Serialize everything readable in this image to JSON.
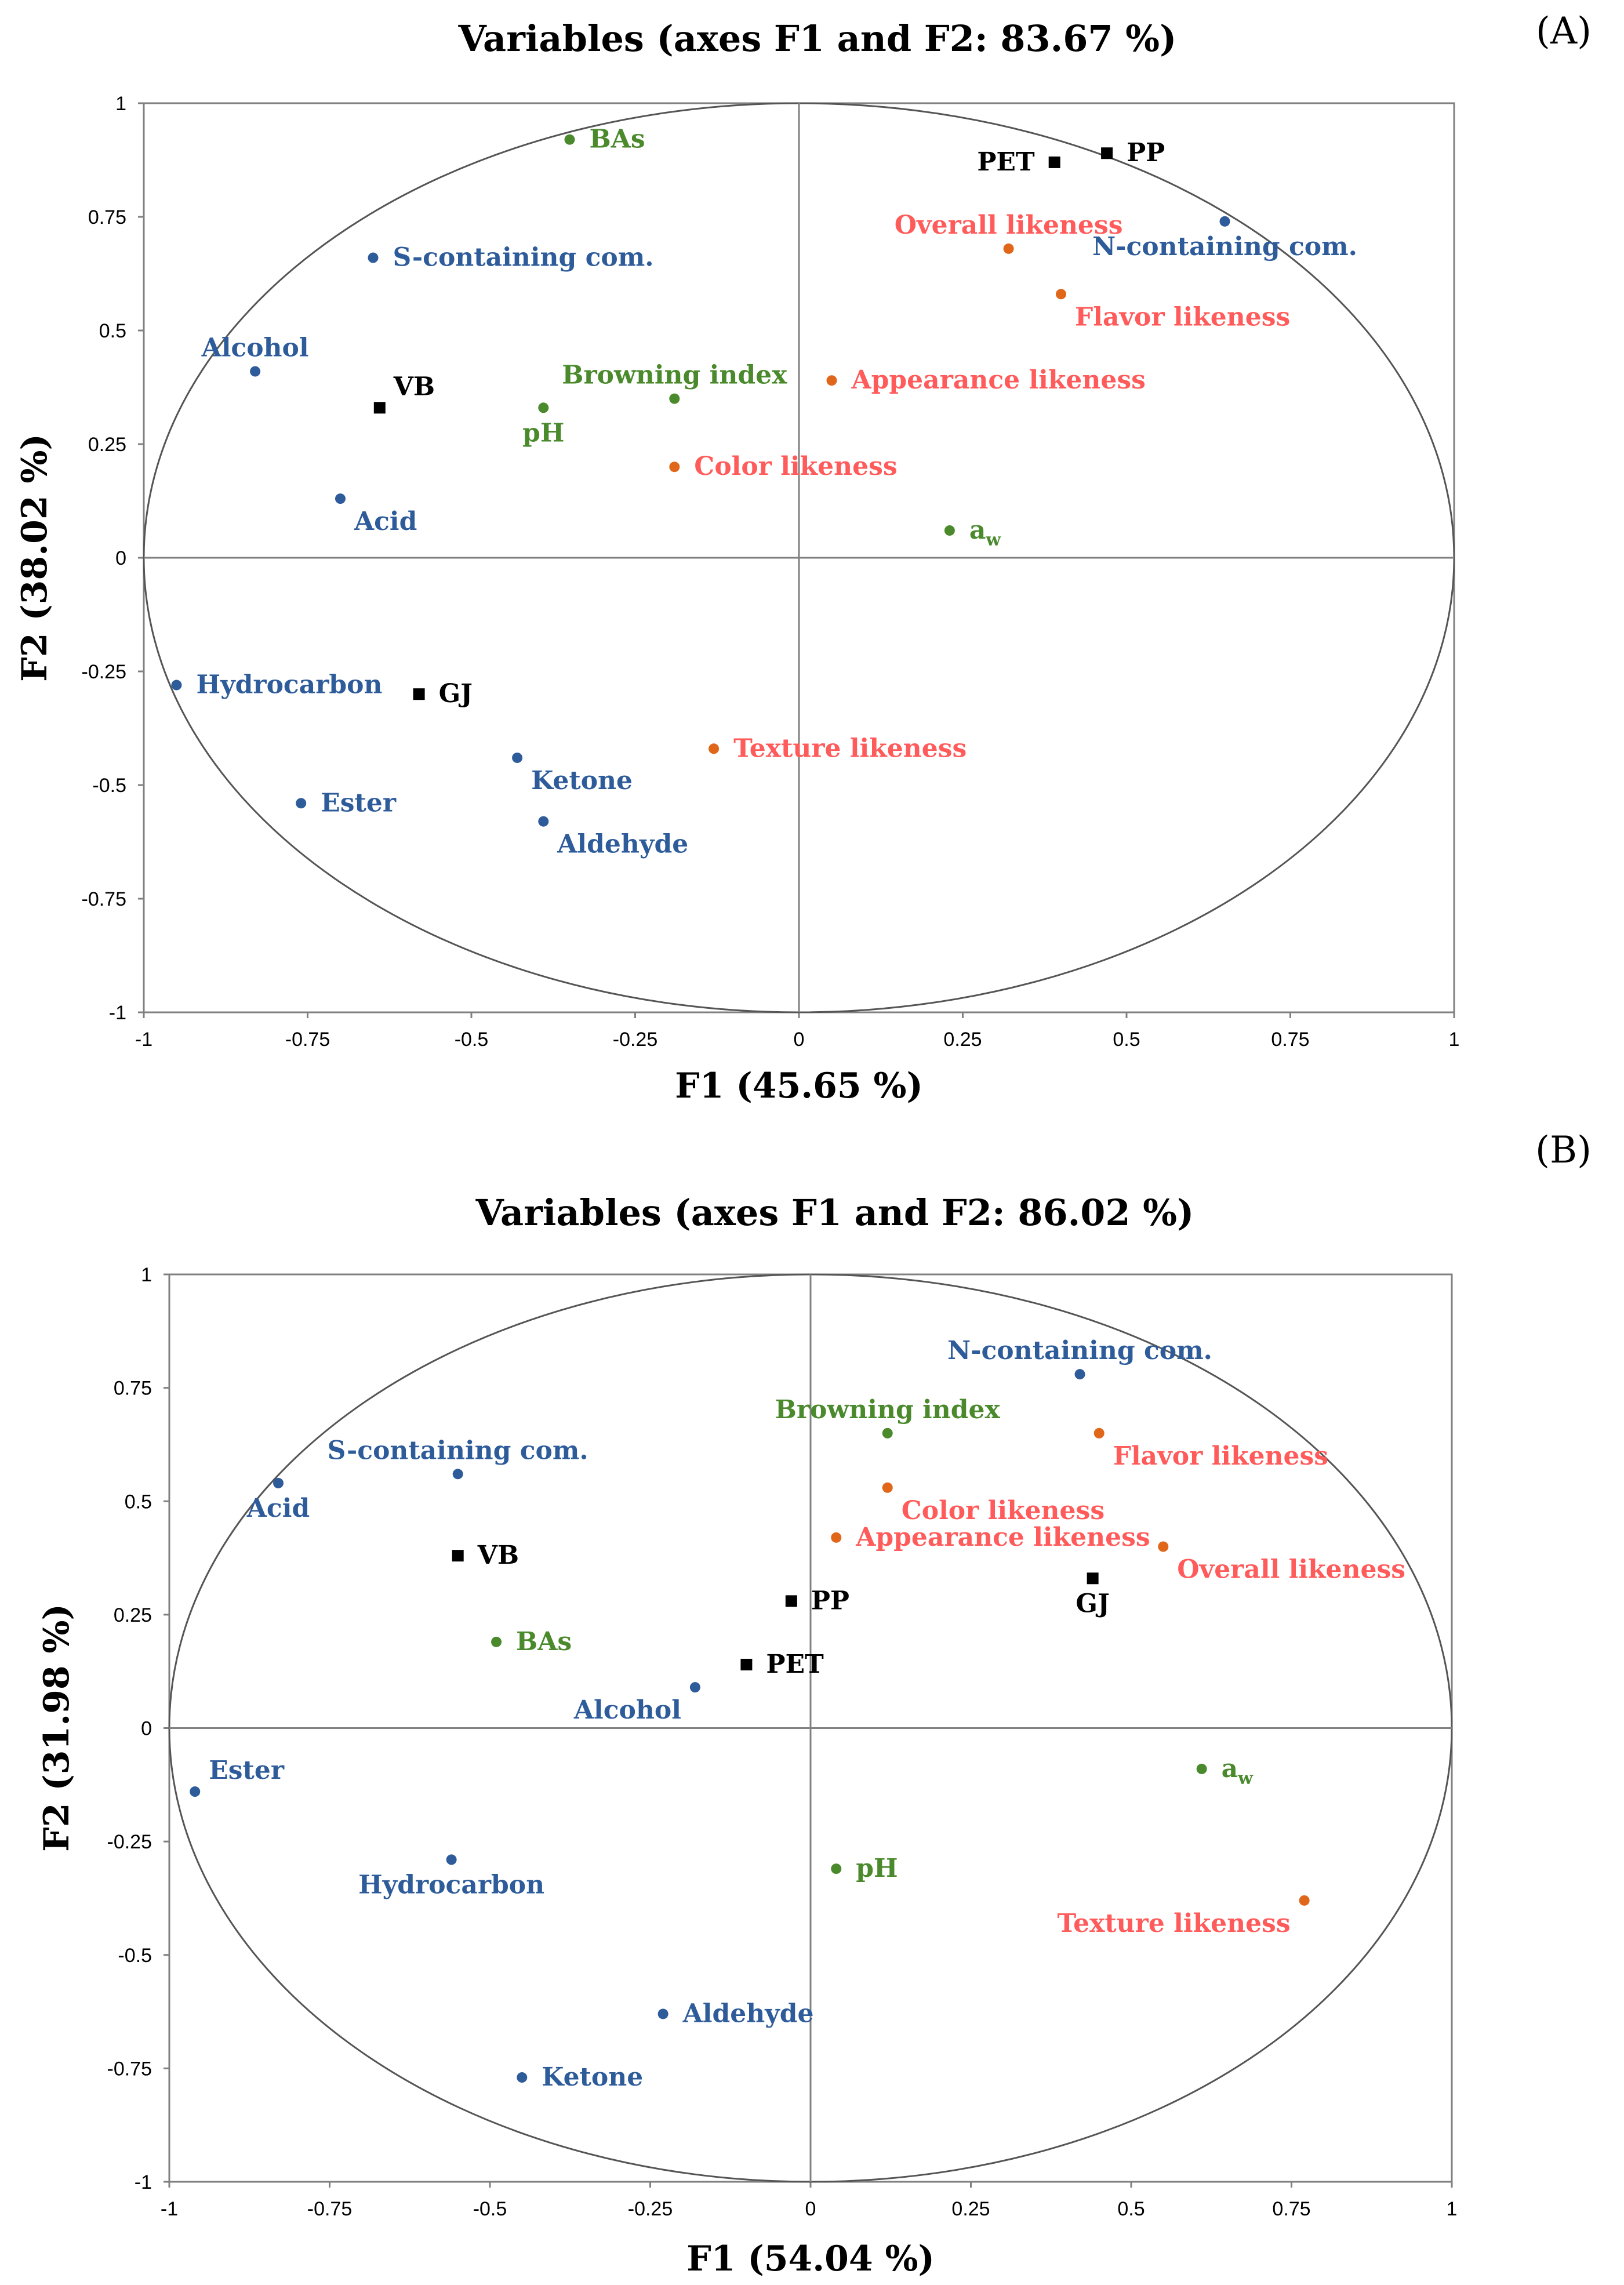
{
  "colors": {
    "blue": "#2e5c9a",
    "green": "#4a8a2c",
    "orange": "#e0661a",
    "red": "#ff5b5b",
    "black": "#000000"
  },
  "chart_data": [
    {
      "type": "scatter",
      "panel_tag": "(A)",
      "title": "Variables (axes F1 and F2: 83.67 %)",
      "xlabel": "F1 (45.65 %)",
      "ylabel": "F2 (38.02 %)",
      "xlim": [
        -1,
        1
      ],
      "ylim": [
        -1,
        1
      ],
      "xticks": [
        "-1",
        "-0.75",
        "-0.5",
        "-0.25",
        "0",
        "0.25",
        "0.5",
        "0.75",
        "1"
      ],
      "yticks": [
        "-1",
        "-0.75",
        "-0.5",
        "-0.25",
        "0",
        "0.25",
        "0.5",
        "0.75",
        "1"
      ],
      "grid": false,
      "correlation_circle": true,
      "points": [
        {
          "label": "BAs",
          "x": -0.35,
          "y": 0.92,
          "group": "green",
          "marker": "dot",
          "anchor": "right"
        },
        {
          "label": "PET",
          "x": 0.39,
          "y": 0.87,
          "group": "black",
          "marker": "square",
          "anchor": "left"
        },
        {
          "label": "PP",
          "x": 0.47,
          "y": 0.89,
          "group": "black",
          "marker": "square",
          "anchor": "right"
        },
        {
          "label": "S-containing com.",
          "x": -0.65,
          "y": 0.66,
          "group": "blue",
          "marker": "dot",
          "anchor": "right"
        },
        {
          "label": "N-containing com.",
          "x": 0.65,
          "y": 0.74,
          "group": "blue",
          "marker": "dot",
          "anchor": "below"
        },
        {
          "label": "Overall likeness",
          "x": 0.32,
          "y": 0.68,
          "group": "orange",
          "marker": "dot",
          "anchor": "above"
        },
        {
          "label": "Flavor likeness",
          "x": 0.4,
          "y": 0.58,
          "group": "orange",
          "marker": "dot",
          "anchor": "below-right"
        },
        {
          "label": "Alcohol",
          "x": -0.83,
          "y": 0.41,
          "group": "blue",
          "marker": "dot",
          "anchor": "above"
        },
        {
          "label": "VB",
          "x": -0.64,
          "y": 0.33,
          "group": "black",
          "marker": "square",
          "anchor": "above-right"
        },
        {
          "label": "Browning index",
          "x": -0.19,
          "y": 0.35,
          "group": "green",
          "marker": "dot",
          "anchor": "above"
        },
        {
          "label": "pH",
          "x": -0.39,
          "y": 0.33,
          "group": "green",
          "marker": "dot",
          "anchor": "below"
        },
        {
          "label": "Appearance likeness",
          "x": 0.05,
          "y": 0.39,
          "group": "orange",
          "marker": "dot",
          "anchor": "right"
        },
        {
          "label": "Color likeness",
          "x": -0.19,
          "y": 0.2,
          "group": "orange",
          "marker": "dot",
          "anchor": "right"
        },
        {
          "label": "Acid",
          "x": -0.7,
          "y": 0.13,
          "group": "blue",
          "marker": "dot",
          "anchor": "below-right"
        },
        {
          "label": "aw",
          "x": 0.23,
          "y": 0.06,
          "group": "green",
          "marker": "dot",
          "anchor": "right"
        },
        {
          "label": "Hydrocarbon",
          "x": -0.95,
          "y": -0.28,
          "group": "blue",
          "marker": "dot",
          "anchor": "right"
        },
        {
          "label": "GJ",
          "x": -0.58,
          "y": -0.3,
          "group": "black",
          "marker": "square",
          "anchor": "right"
        },
        {
          "label": "Texture likeness",
          "x": -0.13,
          "y": -0.42,
          "group": "orange",
          "marker": "dot",
          "anchor": "right"
        },
        {
          "label": "Ketone",
          "x": -0.43,
          "y": -0.44,
          "group": "blue",
          "marker": "dot",
          "anchor": "below-right"
        },
        {
          "label": "Ester",
          "x": -0.76,
          "y": -0.54,
          "group": "blue",
          "marker": "dot",
          "anchor": "right"
        },
        {
          "label": "Aldehyde",
          "x": -0.39,
          "y": -0.58,
          "group": "blue",
          "marker": "dot",
          "anchor": "below-right"
        }
      ]
    },
    {
      "type": "scatter",
      "panel_tag": "(B)",
      "title": "Variables (axes F1 and F2: 86.02 %)",
      "xlabel": "F1 (54.04 %)",
      "ylabel": "F2 (31.98 %)",
      "xlim": [
        -1,
        1
      ],
      "ylim": [
        -1,
        1
      ],
      "xticks": [
        "-1",
        "-0.75",
        "-0.5",
        "-0.25",
        "0",
        "0.25",
        "0.5",
        "0.75",
        "1"
      ],
      "yticks": [
        "-1",
        "-0.75",
        "-0.5",
        "-0.25",
        "0",
        "0.25",
        "0.5",
        "0.75",
        "1"
      ],
      "grid": false,
      "correlation_circle": true,
      "points": [
        {
          "label": "N-containing com.",
          "x": 0.42,
          "y": 0.78,
          "group": "blue",
          "marker": "dot",
          "anchor": "above"
        },
        {
          "label": "Browning index",
          "x": 0.12,
          "y": 0.65,
          "group": "green",
          "marker": "dot",
          "anchor": "above"
        },
        {
          "label": "Flavor likeness",
          "x": 0.45,
          "y": 0.65,
          "group": "orange",
          "marker": "dot",
          "anchor": "below-right"
        },
        {
          "label": "S-containing com.",
          "x": -0.55,
          "y": 0.56,
          "group": "blue",
          "marker": "dot",
          "anchor": "above"
        },
        {
          "label": "Acid",
          "x": -0.83,
          "y": 0.54,
          "group": "blue",
          "marker": "dot",
          "anchor": "below"
        },
        {
          "label": "Color likeness",
          "x": 0.12,
          "y": 0.53,
          "group": "orange",
          "marker": "dot",
          "anchor": "below-right"
        },
        {
          "label": "Appearance likeness",
          "x": 0.04,
          "y": 0.42,
          "group": "orange",
          "marker": "dot",
          "anchor": "right"
        },
        {
          "label": "Overall likeness",
          "x": 0.55,
          "y": 0.4,
          "group": "orange",
          "marker": "dot",
          "anchor": "below-right"
        },
        {
          "label": "VB",
          "x": -0.55,
          "y": 0.38,
          "group": "black",
          "marker": "square",
          "anchor": "right"
        },
        {
          "label": "GJ",
          "x": 0.44,
          "y": 0.33,
          "group": "black",
          "marker": "square",
          "anchor": "below"
        },
        {
          "label": "PP",
          "x": -0.03,
          "y": 0.28,
          "group": "black",
          "marker": "square",
          "anchor": "right"
        },
        {
          "label": "BAs",
          "x": -0.49,
          "y": 0.19,
          "group": "green",
          "marker": "dot",
          "anchor": "right"
        },
        {
          "label": "PET",
          "x": -0.1,
          "y": 0.14,
          "group": "black",
          "marker": "square",
          "anchor": "right"
        },
        {
          "label": "Alcohol",
          "x": -0.18,
          "y": 0.09,
          "group": "blue",
          "marker": "dot",
          "anchor": "below-left"
        },
        {
          "label": "aw",
          "x": 0.61,
          "y": -0.09,
          "group": "green",
          "marker": "dot",
          "anchor": "right"
        },
        {
          "label": "Ester",
          "x": -0.96,
          "y": -0.14,
          "group": "blue",
          "marker": "dot",
          "anchor": "above-right"
        },
        {
          "label": "Hydrocarbon",
          "x": -0.56,
          "y": -0.29,
          "group": "blue",
          "marker": "dot",
          "anchor": "below"
        },
        {
          "label": "pH",
          "x": 0.04,
          "y": -0.31,
          "group": "green",
          "marker": "dot",
          "anchor": "right"
        },
        {
          "label": "Texture likeness",
          "x": 0.77,
          "y": -0.38,
          "group": "orange",
          "marker": "dot",
          "anchor": "below-left"
        },
        {
          "label": "Aldehyde",
          "x": -0.23,
          "y": -0.63,
          "group": "blue",
          "marker": "dot",
          "anchor": "right"
        },
        {
          "label": "Ketone",
          "x": -0.45,
          "y": -0.77,
          "group": "blue",
          "marker": "dot",
          "anchor": "right"
        }
      ]
    }
  ]
}
